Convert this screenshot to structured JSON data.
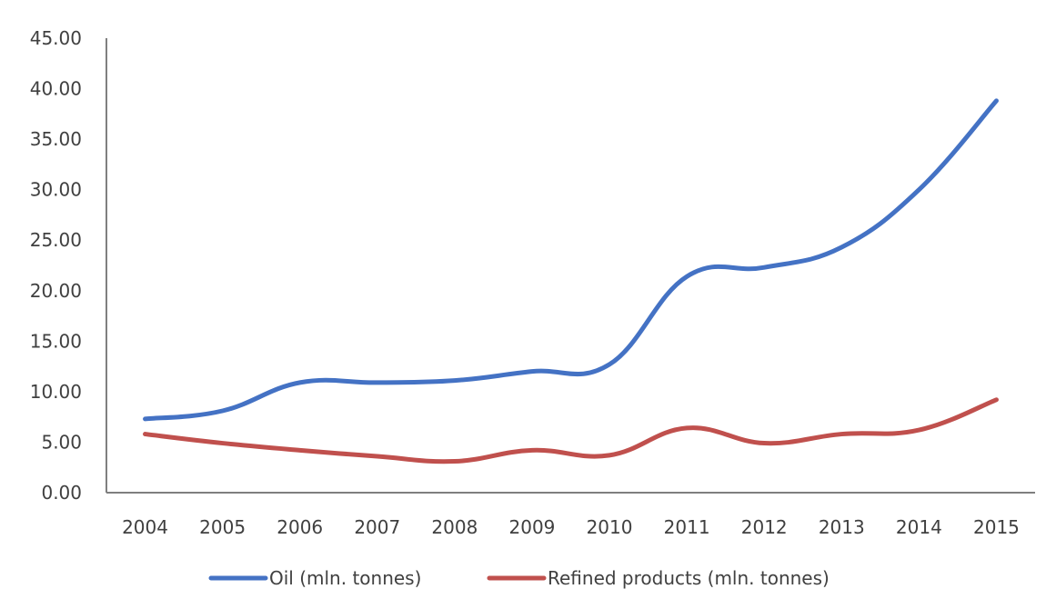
{
  "chart_data": {
    "type": "line",
    "title": "",
    "xlabel": "",
    "ylabel": "",
    "categories": [
      "2004",
      "2005",
      "2006",
      "2007",
      "2008",
      "2009",
      "2010",
      "2011",
      "2012",
      "2013",
      "2014",
      "2015"
    ],
    "y_tick_labels": [
      "0.00",
      "5.00",
      "10.00",
      "15.00",
      "20.00",
      "25.00",
      "30.00",
      "35.00",
      "40.00",
      "45.00"
    ],
    "ylim": [
      0,
      45
    ],
    "grid": false,
    "smooth": true,
    "legend_position": "bottom",
    "series": [
      {
        "name": "Oil (mln. tonnes)",
        "color": "#4472C4",
        "values": [
          7.3,
          8.1,
          10.9,
          10.9,
          11.1,
          12.0,
          12.7,
          21.4,
          22.3,
          24.3,
          30.0,
          38.8
        ]
      },
      {
        "name": "Refined products (mln. tonnes)",
        "color": "#C0504D",
        "values": [
          5.8,
          4.9,
          4.2,
          3.6,
          3.1,
          4.2,
          3.7,
          6.4,
          4.9,
          5.8,
          6.2,
          9.2
        ]
      }
    ],
    "axis_color": "#7f7f7f"
  }
}
